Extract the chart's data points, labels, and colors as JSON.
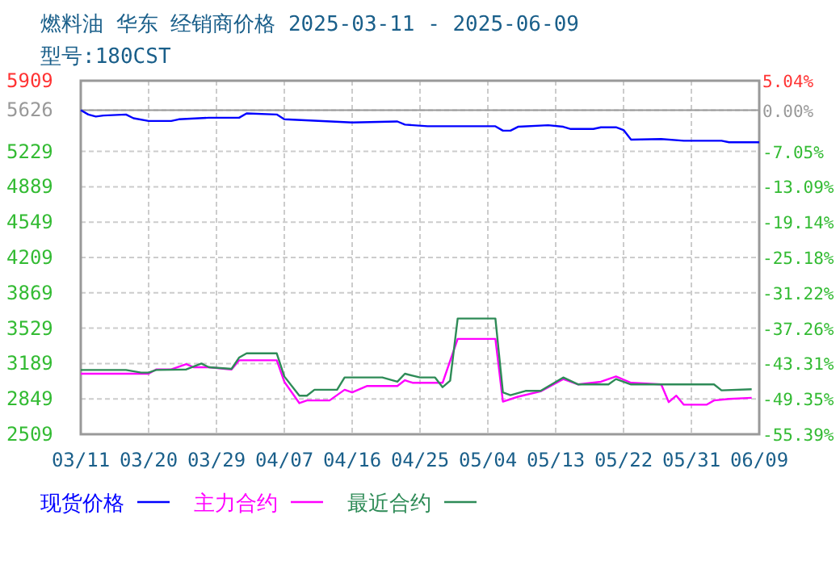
{
  "chart_data": {
    "type": "line",
    "title": "燃料油 华东 经销商价格 2025-03-11 - 2025-06-09",
    "subtitle": "型号:180CST",
    "xlim": [
      "2025-03-11",
      "2025-06-09"
    ],
    "xticks": [
      {
        "value": "2025-03-11",
        "label": "03/11"
      },
      {
        "value": "2025-03-20",
        "label": "03/20"
      },
      {
        "value": "2025-03-29",
        "label": "03/29"
      },
      {
        "value": "2025-04-07",
        "label": "04/07"
      },
      {
        "value": "2025-04-16",
        "label": "04/16"
      },
      {
        "value": "2025-04-25",
        "label": "04/25"
      },
      {
        "value": "2025-05-04",
        "label": "05/04"
      },
      {
        "value": "2025-05-13",
        "label": "05/13"
      },
      {
        "value": "2025-05-22",
        "label": "05/22"
      },
      {
        "value": "2025-05-31",
        "label": "05/31"
      },
      {
        "value": "2025-06-09",
        "label": "06/09"
      }
    ],
    "ylim": [
      2509,
      5909
    ],
    "yticks": [
      2509,
      2849,
      3189,
      3529,
      3869,
      4209,
      4549,
      4889,
      5229,
      5626,
      5909
    ],
    "y2lim": [
      -55.39,
      5.04
    ],
    "y2ticks": [
      {
        "value": -55.39,
        "label": "-55.39%"
      },
      {
        "value": -49.35,
        "label": "-49.35%"
      },
      {
        "value": -43.31,
        "label": "-43.31%"
      },
      {
        "value": -37.26,
        "label": "-37.26%"
      },
      {
        "value": -31.22,
        "label": "-31.22%"
      },
      {
        "value": -25.18,
        "label": "-25.18%"
      },
      {
        "value": -19.14,
        "label": "-19.14%"
      },
      {
        "value": -13.09,
        "label": "-13.09%"
      },
      {
        "value": -7.05,
        "label": "-7.05%"
      },
      {
        "value": 0,
        "label": "0.00%"
      },
      {
        "value": 5.04,
        "label": "5.04%"
      }
    ],
    "ref_lines": [
      {
        "axis": "y",
        "value": 5626,
        "color": "#999999"
      }
    ],
    "grid": true,
    "legend": "bottom",
    "line_style": "solid",
    "marker": "none",
    "series": [
      {
        "name": "现货价格",
        "color": "#0000ff",
        "x": [
          "2025-03-11",
          "2025-03-12",
          "2025-03-13",
          "2025-03-14",
          "2025-03-17",
          "2025-03-18",
          "2025-03-20",
          "2025-03-23",
          "2025-03-24",
          "2025-03-28",
          "2025-04-01",
          "2025-04-02",
          "2025-04-06",
          "2025-04-07",
          "2025-04-16",
          "2025-04-22",
          "2025-04-23",
          "2025-04-26",
          "2025-05-05",
          "2025-05-06",
          "2025-05-07",
          "2025-05-08",
          "2025-05-12",
          "2025-05-14",
          "2025-05-15",
          "2025-05-18",
          "2025-05-19",
          "2025-05-21",
          "2025-05-22",
          "2025-05-23",
          "2025-05-27",
          "2025-05-30",
          "2025-06-04",
          "2025-06-05",
          "2025-06-09"
        ],
        "values": [
          5626,
          5584,
          5565,
          5574,
          5584,
          5548,
          5522,
          5522,
          5538,
          5553,
          5553,
          5595,
          5584,
          5538,
          5507,
          5517,
          5487,
          5471,
          5471,
          5429,
          5429,
          5466,
          5481,
          5466,
          5445,
          5445,
          5461,
          5461,
          5435,
          5342,
          5348,
          5332,
          5332,
          5317,
          5317
        ]
      },
      {
        "name": "主力合约",
        "color": "#ff00ff",
        "x": [
          "2025-03-11",
          "2025-03-17",
          "2025-03-20",
          "2025-03-21",
          "2025-03-23",
          "2025-03-25",
          "2025-03-26",
          "2025-03-28",
          "2025-03-31",
          "2025-04-01",
          "2025-04-02",
          "2025-04-06",
          "2025-04-07",
          "2025-04-09",
          "2025-04-10",
          "2025-04-13",
          "2025-04-15",
          "2025-04-16",
          "2025-04-18",
          "2025-04-22",
          "2025-04-23",
          "2025-04-24",
          "2025-04-28",
          "2025-04-30",
          "2025-05-05",
          "2025-05-06",
          "2025-05-08",
          "2025-05-11",
          "2025-05-14",
          "2025-05-16",
          "2025-05-19",
          "2025-05-21",
          "2025-05-23",
          "2025-05-27",
          "2025-05-28",
          "2025-05-29",
          "2025-05-30",
          "2025-06-02",
          "2025-06-03",
          "2025-06-05",
          "2025-06-08"
        ],
        "values": [
          3091,
          3091,
          3091,
          3132,
          3132,
          3184,
          3153,
          3153,
          3132,
          3220,
          3220,
          3220,
          3014,
          2808,
          2834,
          2834,
          2937,
          2911,
          2973,
          2973,
          3029,
          3004,
          3004,
          3426,
          3426,
          2823,
          2870,
          2921,
          3040,
          2988,
          3014,
          3065,
          3004,
          2988,
          2818,
          2880,
          2793,
          2793,
          2834,
          2849,
          2859
        ]
      },
      {
        "name": "最近合约",
        "color": "#2e8b57",
        "x": [
          "2025-03-11",
          "2025-03-17",
          "2025-03-19",
          "2025-03-20",
          "2025-03-21",
          "2025-03-25",
          "2025-03-27",
          "2025-03-28",
          "2025-03-31",
          "2025-04-01",
          "2025-04-02",
          "2025-04-06",
          "2025-04-07",
          "2025-04-09",
          "2025-04-10",
          "2025-04-11",
          "2025-04-14",
          "2025-04-15",
          "2025-04-20",
          "2025-04-22",
          "2025-04-23",
          "2025-04-25",
          "2025-04-27",
          "2025-04-28",
          "2025-04-29",
          "2025-04-30",
          "2025-05-05",
          "2025-05-06",
          "2025-05-07",
          "2025-05-09",
          "2025-05-11",
          "2025-05-14",
          "2025-05-16",
          "2025-05-20",
          "2025-05-21",
          "2025-05-23",
          "2025-06-03",
          "2025-06-04",
          "2025-06-08"
        ],
        "values": [
          3127,
          3127,
          3102,
          3102,
          3127,
          3132,
          3189,
          3153,
          3138,
          3246,
          3287,
          3287,
          3065,
          2880,
          2880,
          2937,
          2937,
          3055,
          3055,
          3014,
          3091,
          3055,
          3055,
          2962,
          3024,
          3622,
          3622,
          2911,
          2885,
          2926,
          2926,
          3055,
          2988,
          2988,
          3040,
          2988,
          2988,
          2931,
          2942
        ]
      }
    ]
  }
}
